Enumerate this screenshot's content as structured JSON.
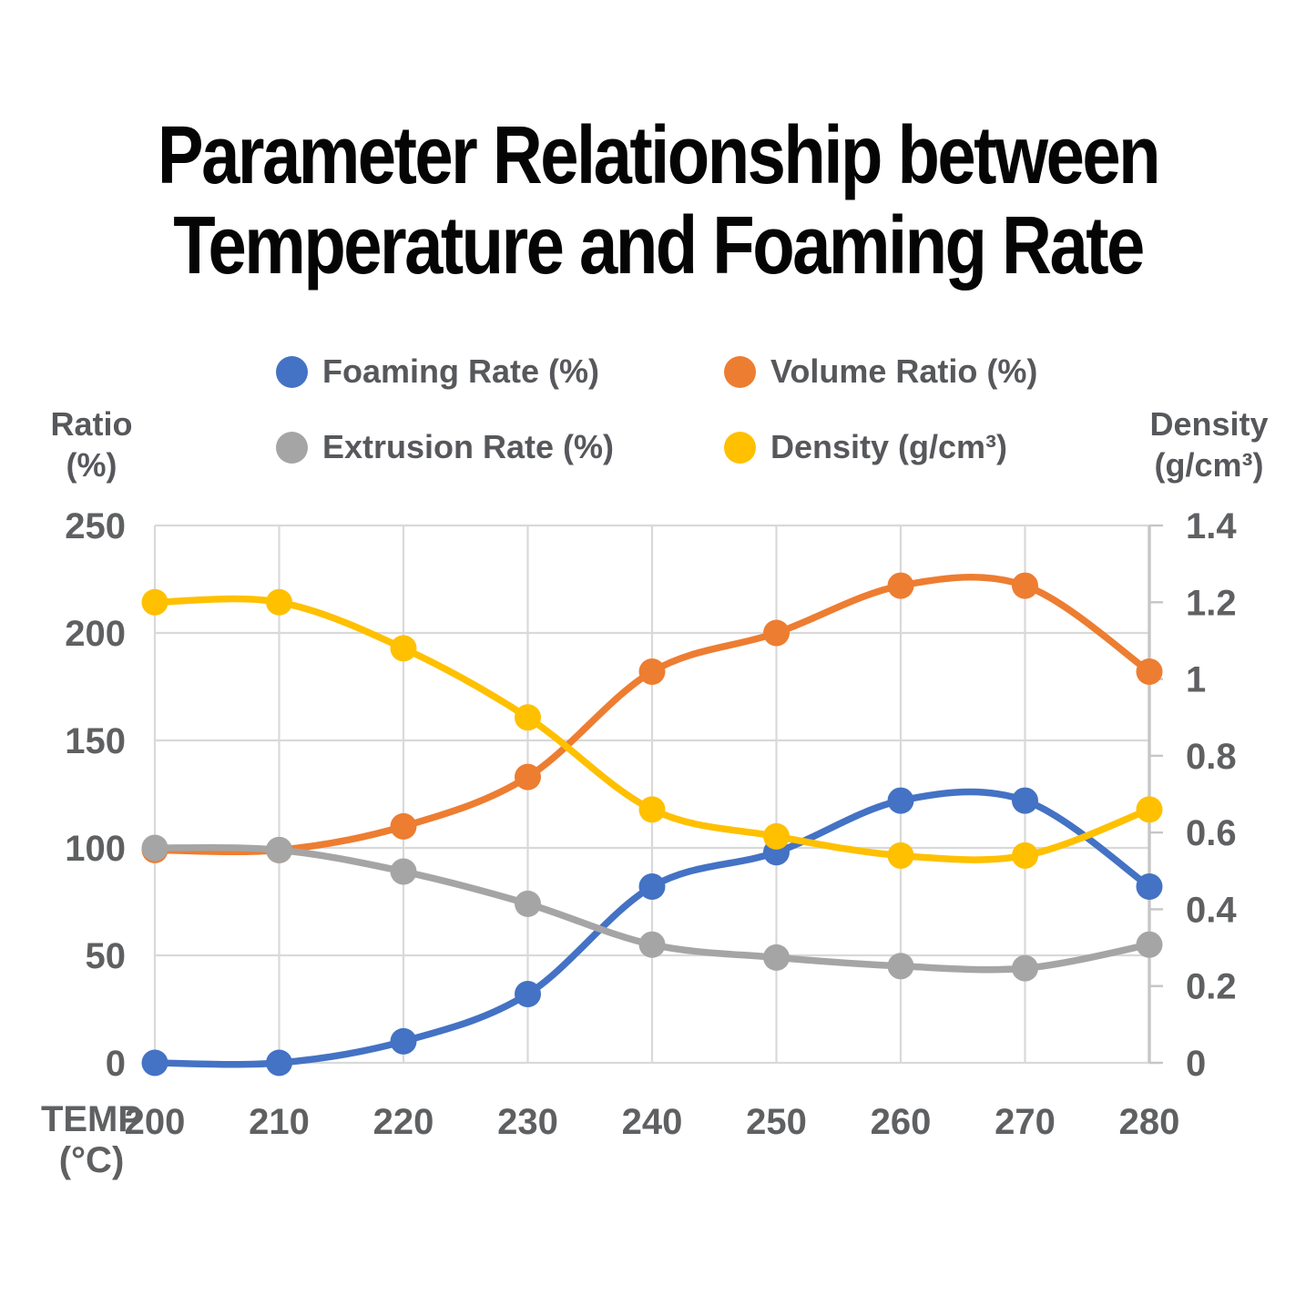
{
  "title": {
    "line1": "Parameter Relationship between",
    "line2": "Temperature and Foaming Rate"
  },
  "axes": {
    "left": {
      "title_line1": "Ratio",
      "title_line2": "(%)",
      "ticks": [
        "250",
        "200",
        "150",
        "100",
        "50",
        "0"
      ]
    },
    "right": {
      "title_line1": "Density",
      "title_line2": "(g/cm³)",
      "ticks": [
        "1.4",
        "1.2",
        "1",
        "0.8",
        "0.6",
        "0.4",
        "0.2",
        "0"
      ]
    },
    "x": {
      "title_line1": "TEMP",
      "title_line2": "(°C)",
      "labels": [
        "200",
        "210",
        "220",
        "230",
        "240",
        "250",
        "260",
        "270",
        "280"
      ]
    }
  },
  "colors": {
    "grid": "#d9d9d9",
    "axis_line": "#c6c6c6",
    "tick_text": "#5f6062"
  },
  "chart_data": {
    "type": "line",
    "title": "Parameter Relationship between Temperature and Foaming Rate",
    "x": [
      200,
      210,
      220,
      230,
      240,
      250,
      260,
      270,
      280
    ],
    "xlabel": "TEMP (°C)",
    "left_axis": {
      "label": "Ratio (%)",
      "range": [
        0,
        250
      ],
      "tick_step": 50
    },
    "right_axis": {
      "label": "Density (g/cm³)",
      "range": [
        0,
        1.4
      ],
      "tick_step": 0.2
    },
    "grid": true,
    "legend_position": "top",
    "line_style": "smooth",
    "series": [
      {
        "name": "Foaming Rate (%)",
        "axis": "left",
        "color": "#4472C4",
        "values": [
          0,
          0,
          10,
          32,
          82,
          98,
          122,
          122,
          82
        ]
      },
      {
        "name": "Volume Ratio (%)",
        "axis": "left",
        "color": "#ED7D31",
        "values": [
          99,
          99,
          110,
          133,
          182,
          200,
          222,
          222,
          182
        ]
      },
      {
        "name": "Extrusion Rate (%)",
        "axis": "left",
        "color": "#A5A5A5",
        "values": [
          100,
          99,
          89,
          74,
          55,
          49,
          45,
          44,
          55
        ]
      },
      {
        "name": "Density (g/cm³)",
        "axis": "right",
        "color": "#FFC000",
        "values": [
          1.2,
          1.2,
          1.08,
          0.9,
          0.66,
          0.59,
          0.54,
          0.54,
          0.66
        ]
      }
    ]
  }
}
